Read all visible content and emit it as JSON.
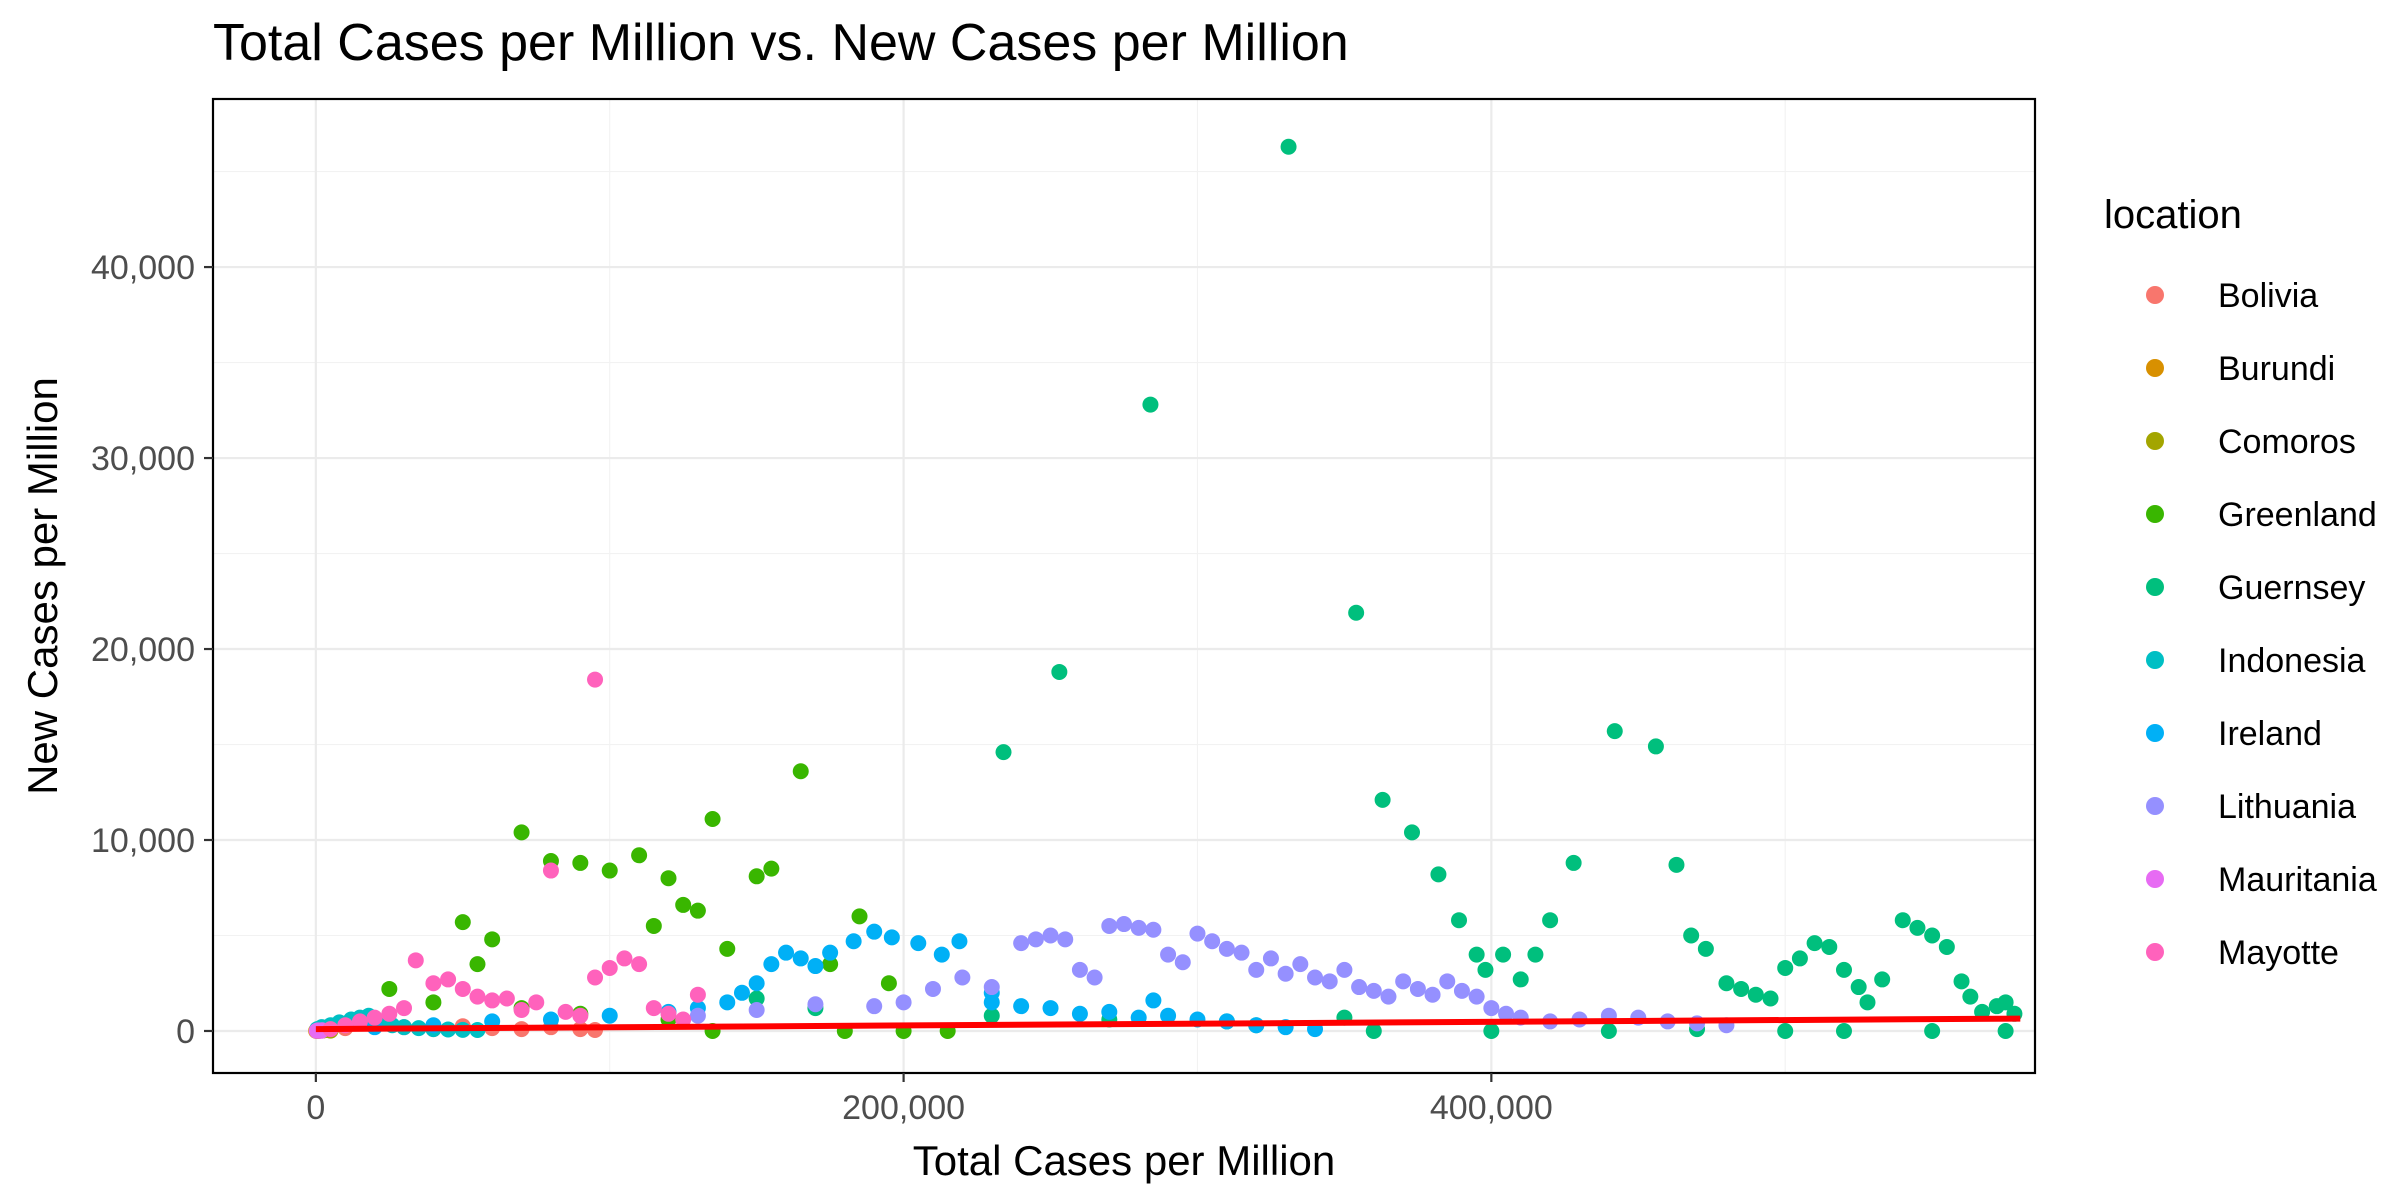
{
  "chart_data": {
    "type": "scatter",
    "title": "Total Cases per Million vs. New Cases per Million",
    "xlabel": "Total Cases per Million",
    "ylabel": "New Cases per Million",
    "xlim": [
      -35000,
      585000
    ],
    "ylim": [
      -2200,
      48800
    ],
    "x_ticks": [
      0,
      200000,
      400000
    ],
    "x_tick_labels": [
      "0",
      "200,000",
      "400,000"
    ],
    "y_ticks": [
      0,
      10000,
      20000,
      30000,
      40000
    ],
    "y_tick_labels": [
      "0",
      "10,000",
      "20,000",
      "30,000",
      "40,000"
    ],
    "grid": true,
    "legend": {
      "title": "location",
      "position": "right"
    },
    "series": [
      {
        "name": "Bolivia",
        "color": "#F8766D",
        "points": [
          [
            2000,
            50
          ],
          [
            10000,
            150
          ],
          [
            20000,
            300
          ],
          [
            30000,
            200
          ],
          [
            40000,
            100
          ],
          [
            50000,
            250
          ],
          [
            60000,
            150
          ],
          [
            70000,
            100
          ],
          [
            80000,
            200
          ],
          [
            90000,
            100
          ],
          [
            95000,
            50
          ]
        ]
      },
      {
        "name": "Burundi",
        "color": "#D89000",
        "points": [
          [
            100,
            5
          ],
          [
            300,
            10
          ],
          [
            500,
            8
          ],
          [
            800,
            12
          ],
          [
            1000,
            6
          ]
        ]
      },
      {
        "name": "Comoros",
        "color": "#A3A500",
        "points": [
          [
            500,
            20
          ],
          [
            1500,
            40
          ],
          [
            2500,
            30
          ],
          [
            4000,
            50
          ],
          [
            5000,
            20
          ]
        ]
      },
      {
        "name": "Greenland",
        "color": "#39B600",
        "points": [
          [
            25000,
            2200
          ],
          [
            50000,
            5700
          ],
          [
            55000,
            3500
          ],
          [
            60000,
            4800
          ],
          [
            70000,
            10400
          ],
          [
            80000,
            8900
          ],
          [
            90000,
            8800
          ],
          [
            100000,
            8400
          ],
          [
            110000,
            9200
          ],
          [
            115000,
            5500
          ],
          [
            120000,
            8000
          ],
          [
            125000,
            6600
          ],
          [
            130000,
            6300
          ],
          [
            135000,
            11100
          ],
          [
            140000,
            4300
          ],
          [
            150000,
            8100
          ],
          [
            155000,
            8500
          ],
          [
            165000,
            13600
          ],
          [
            185000,
            6000
          ],
          [
            135000,
            0
          ],
          [
            180000,
            0
          ],
          [
            200000,
            0
          ],
          [
            215000,
            0
          ],
          [
            40000,
            1500
          ],
          [
            70000,
            1200
          ],
          [
            90000,
            900
          ],
          [
            120000,
            600
          ],
          [
            175000,
            3500
          ],
          [
            195000,
            2500
          ]
        ]
      },
      {
        "name": "Guernsey",
        "color": "#00BF7D",
        "points": [
          [
            331000,
            46300
          ],
          [
            284000,
            32800
          ],
          [
            253000,
            18800
          ],
          [
            234000,
            14600
          ],
          [
            354000,
            21900
          ],
          [
            442000,
            15700
          ],
          [
            456000,
            14900
          ],
          [
            363000,
            12100
          ],
          [
            373000,
            10400
          ],
          [
            382000,
            8200
          ],
          [
            428000,
            8800
          ],
          [
            463000,
            8700
          ],
          [
            389000,
            5800
          ],
          [
            420000,
            5800
          ],
          [
            395000,
            4000
          ],
          [
            404000,
            4000
          ],
          [
            398000,
            3200
          ],
          [
            410000,
            2700
          ],
          [
            415000,
            4000
          ],
          [
            468000,
            5000
          ],
          [
            473000,
            4300
          ],
          [
            480000,
            2500
          ],
          [
            485000,
            2200
          ],
          [
            490000,
            1900
          ],
          [
            495000,
            1700
          ],
          [
            500000,
            3300
          ],
          [
            505000,
            3800
          ],
          [
            510000,
            4600
          ],
          [
            515000,
            4400
          ],
          [
            520000,
            3200
          ],
          [
            525000,
            2300
          ],
          [
            528000,
            1500
          ],
          [
            533000,
            2700
          ],
          [
            540000,
            5800
          ],
          [
            545000,
            5400
          ],
          [
            550000,
            5000
          ],
          [
            555000,
            4400
          ],
          [
            560000,
            2600
          ],
          [
            563000,
            1800
          ],
          [
            567000,
            1000
          ],
          [
            572000,
            1300
          ],
          [
            575000,
            1500
          ],
          [
            578000,
            900
          ],
          [
            270000,
            600
          ],
          [
            310000,
            500
          ],
          [
            350000,
            700
          ],
          [
            360000,
            0
          ],
          [
            400000,
            0
          ],
          [
            440000,
            0
          ],
          [
            470000,
            100
          ],
          [
            500000,
            0
          ],
          [
            520000,
            0
          ],
          [
            550000,
            0
          ],
          [
            575000,
            0
          ],
          [
            150000,
            1700
          ],
          [
            170000,
            1200
          ],
          [
            230000,
            800
          ],
          [
            320000,
            300
          ]
        ]
      },
      {
        "name": "Indonesia",
        "color": "#00BFC4",
        "points": [
          [
            500,
            100
          ],
          [
            2000,
            200
          ],
          [
            5000,
            300
          ],
          [
            8000,
            450
          ],
          [
            12000,
            600
          ],
          [
            15000,
            700
          ],
          [
            18000,
            800
          ],
          [
            22000,
            500
          ],
          [
            26000,
            300
          ],
          [
            30000,
            200
          ],
          [
            35000,
            150
          ],
          [
            40000,
            100
          ],
          [
            45000,
            80
          ],
          [
            50000,
            60
          ],
          [
            55000,
            50
          ]
        ]
      },
      {
        "name": "Ireland",
        "color": "#00B0F6",
        "points": [
          [
            190000,
            5200
          ],
          [
            183000,
            4700
          ],
          [
            196000,
            4900
          ],
          [
            205000,
            4600
          ],
          [
            213000,
            4000
          ],
          [
            219000,
            4700
          ],
          [
            175000,
            4100
          ],
          [
            170000,
            3400
          ],
          [
            165000,
            3800
          ],
          [
            160000,
            4100
          ],
          [
            155000,
            3500
          ],
          [
            150000,
            2500
          ],
          [
            145000,
            2000
          ],
          [
            140000,
            1500
          ],
          [
            130000,
            1200
          ],
          [
            120000,
            1000
          ],
          [
            100000,
            800
          ],
          [
            80000,
            600
          ],
          [
            60000,
            500
          ],
          [
            40000,
            300
          ],
          [
            20000,
            200
          ],
          [
            230000,
            1500
          ],
          [
            250000,
            1200
          ],
          [
            270000,
            1000
          ],
          [
            285000,
            1600
          ],
          [
            290000,
            800
          ],
          [
            300000,
            600
          ],
          [
            310000,
            500
          ],
          [
            320000,
            300
          ],
          [
            330000,
            200
          ],
          [
            340000,
            100
          ],
          [
            230000,
            2000
          ],
          [
            240000,
            1300
          ],
          [
            260000,
            900
          ],
          [
            280000,
            700
          ]
        ]
      },
      {
        "name": "Lithuania",
        "color": "#9590FF",
        "points": [
          [
            250000,
            5000
          ],
          [
            255000,
            4800
          ],
          [
            260000,
            3200
          ],
          [
            265000,
            2800
          ],
          [
            270000,
            5500
          ],
          [
            275000,
            5600
          ],
          [
            280000,
            5400
          ],
          [
            285000,
            5300
          ],
          [
            290000,
            4000
          ],
          [
            295000,
            3600
          ],
          [
            300000,
            5100
          ],
          [
            305000,
            4700
          ],
          [
            310000,
            4300
          ],
          [
            315000,
            4100
          ],
          [
            320000,
            3200
          ],
          [
            325000,
            3800
          ],
          [
            330000,
            3000
          ],
          [
            335000,
            3500
          ],
          [
            340000,
            2800
          ],
          [
            345000,
            2600
          ],
          [
            350000,
            3200
          ],
          [
            355000,
            2300
          ],
          [
            360000,
            2100
          ],
          [
            365000,
            1800
          ],
          [
            370000,
            2600
          ],
          [
            375000,
            2200
          ],
          [
            380000,
            1900
          ],
          [
            385000,
            2600
          ],
          [
            390000,
            2100
          ],
          [
            395000,
            1800
          ],
          [
            400000,
            1200
          ],
          [
            405000,
            900
          ],
          [
            410000,
            700
          ],
          [
            420000,
            500
          ],
          [
            430000,
            600
          ],
          [
            440000,
            800
          ],
          [
            450000,
            700
          ],
          [
            460000,
            500
          ],
          [
            470000,
            400
          ],
          [
            480000,
            300
          ],
          [
            200000,
            1500
          ],
          [
            210000,
            2200
          ],
          [
            220000,
            2800
          ],
          [
            230000,
            2300
          ],
          [
            240000,
            4600
          ],
          [
            245000,
            4800
          ],
          [
            130000,
            800
          ],
          [
            150000,
            1100
          ],
          [
            170000,
            1400
          ],
          [
            190000,
            1300
          ]
        ]
      },
      {
        "name": "Mauritania",
        "color": "#E76BF3",
        "points": [
          [
            300,
            10
          ],
          [
            600,
            20
          ],
          [
            900,
            30
          ],
          [
            1200,
            15
          ],
          [
            1500,
            25
          ],
          [
            1800,
            10
          ],
          [
            2100,
            40
          ]
        ]
      },
      {
        "name": "Mayotte",
        "color": "#FF62BC",
        "points": [
          [
            95000,
            18400
          ],
          [
            80000,
            8400
          ],
          [
            34000,
            3700
          ],
          [
            45000,
            2700
          ],
          [
            40000,
            2500
          ],
          [
            50000,
            2200
          ],
          [
            105000,
            3800
          ],
          [
            110000,
            3500
          ],
          [
            100000,
            3300
          ],
          [
            95000,
            2800
          ],
          [
            130000,
            1900
          ],
          [
            75000,
            1500
          ],
          [
            65000,
            1700
          ],
          [
            60000,
            1600
          ],
          [
            55000,
            1800
          ],
          [
            30000,
            1200
          ],
          [
            25000,
            900
          ],
          [
            20000,
            700
          ],
          [
            15000,
            500
          ],
          [
            10000,
            300
          ],
          [
            5000,
            100
          ],
          [
            85000,
            1000
          ],
          [
            90000,
            800
          ],
          [
            115000,
            1200
          ],
          [
            120000,
            900
          ],
          [
            125000,
            600
          ],
          [
            70000,
            1100
          ]
        ]
      }
    ],
    "trend_line": {
      "color": "#FF0000",
      "points": [
        [
          0,
          100
        ],
        [
          580000,
          650
        ]
      ]
    }
  }
}
